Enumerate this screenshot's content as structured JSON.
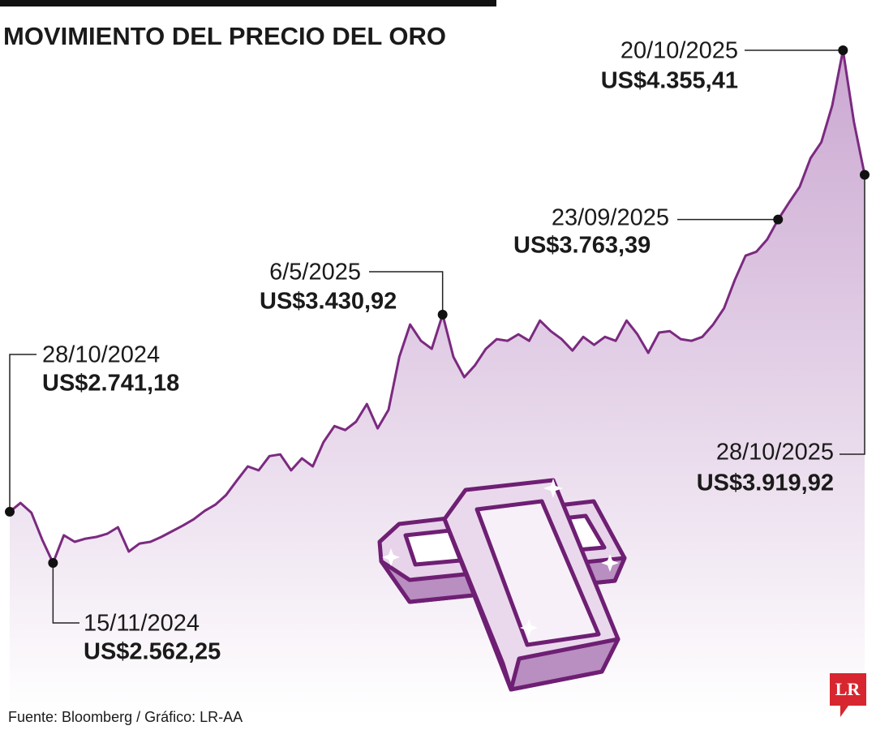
{
  "chart_data": {
    "type": "line",
    "title": "MOVIMIENTO DEL PRECIO DEL ORO",
    "source": "Fuente: Bloomberg / Gráfico: LR-AA",
    "series": [
      {
        "color": "#7b2a80",
        "fill_color": "#c8a3cf",
        "values": [
          2741.18,
          2772,
          2738,
          2644,
          2562.25,
          2659,
          2636,
          2647,
          2653,
          2664,
          2687,
          2602,
          2630,
          2636,
          2653,
          2673,
          2693,
          2715,
          2744,
          2766,
          2800,
          2851,
          2900,
          2886,
          2936,
          2942,
          2886,
          2928,
          2900,
          2985,
          3041,
          3027,
          3056,
          3118,
          3033,
          3098,
          3283,
          3396,
          3339,
          3311,
          3430.92,
          3283,
          3212,
          3254,
          3311,
          3345,
          3339,
          3362,
          3339,
          3410,
          3373,
          3345,
          3305,
          3353,
          3325,
          3353,
          3339,
          3410,
          3362,
          3297,
          3368,
          3373,
          3345,
          3339,
          3353,
          3396,
          3453,
          3552,
          3637,
          3651,
          3694,
          3763.39,
          3822,
          3878,
          3978,
          4034,
          4162,
          4355.41,
          4106,
          3919.92
        ]
      }
    ],
    "annotations": [
      {
        "date": "28/10/2024",
        "value": 2741.18,
        "label": "US$2.741,18"
      },
      {
        "date": "15/11/2024",
        "value": 2562.25,
        "label": "US$2.562,25"
      },
      {
        "date": "6/5/2025",
        "value": 3430.92,
        "label": "US$3.430,92"
      },
      {
        "date": "23/09/2025",
        "value": 3763.39,
        "label": "US$3.763,39"
      },
      {
        "date": "20/10/2025",
        "value": 4355.41,
        "label": "US$4.355,41"
      },
      {
        "date": "28/10/2025",
        "value": 3919.92,
        "label": "US$3.919,92"
      }
    ]
  },
  "logo": "LR"
}
